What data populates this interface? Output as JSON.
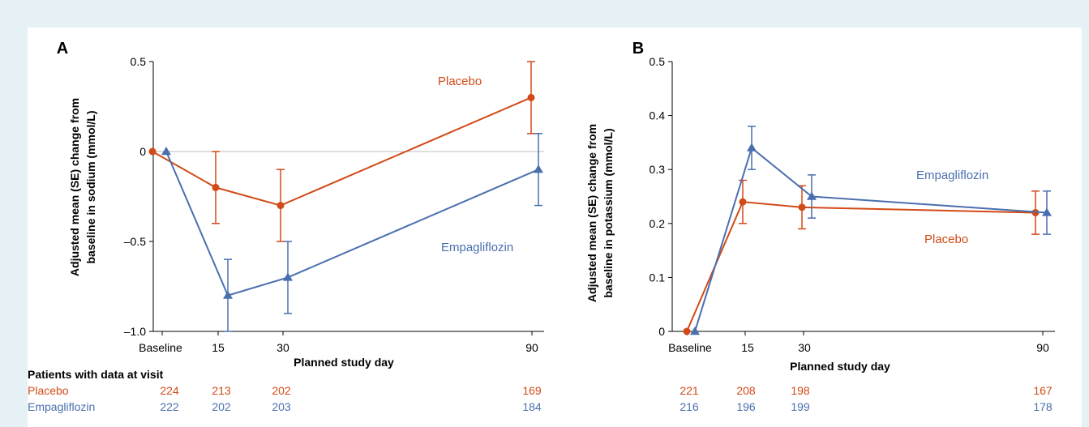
{
  "colors": {
    "placebo": "#d24a17",
    "empagliflozin": "#4a6fae",
    "axis": "#000000",
    "zero_line": "#bdbdbd"
  },
  "table_header": "Patients with data at visit",
  "chart_data": [
    {
      "panel_label": "A",
      "type": "line",
      "ylabel_lines": [
        "Adjusted mean (SE) change from",
        "baseline in sodium (mmol/L)"
      ],
      "xlabel": "Planned study day",
      "ylim": [
        -1.0,
        0.5
      ],
      "yticks": [
        0.5,
        0,
        -0.5,
        -1.0
      ],
      "ytick_labels": [
        "0.5",
        "0",
        "–0.5",
        "–1.0"
      ],
      "xticks": [
        {
          "label": "Baseline",
          "day": 0
        },
        {
          "label": "15",
          "day": 15
        },
        {
          "label": "30",
          "day": 30
        },
        {
          "label": "90",
          "day": 90
        }
      ],
      "zero_line": true,
      "series": [
        {
          "name": "Placebo",
          "color_key": "placebo",
          "marker": "circle",
          "x": [
            0,
            15,
            30,
            90
          ],
          "y": [
            0,
            -0.2,
            -0.3,
            0.3
          ],
          "se": [
            0,
            0.2,
            0.2,
            0.2
          ]
        },
        {
          "name": "Empagliflozin",
          "color_key": "empagliflozin",
          "marker": "triangle",
          "x": [
            0,
            15,
            30,
            90
          ],
          "y": [
            0,
            -0.8,
            -0.7,
            -0.1
          ],
          "se": [
            0,
            0.2,
            0.2,
            0.2
          ]
        }
      ],
      "counts": [
        {
          "name": "Placebo",
          "color_key": "placebo",
          "values": [
            "224",
            "213",
            "202",
            "169"
          ]
        },
        {
          "name": "Empagliflozin",
          "color_key": "empagliflozin",
          "values": [
            "222",
            "202",
            "203",
            "184"
          ]
        }
      ]
    },
    {
      "panel_label": "B",
      "type": "line",
      "ylabel_lines": [
        "Adjusted mean (SE) change from",
        "baseline in potassium (mmol/L)"
      ],
      "xlabel": "Planned study day",
      "ylim": [
        0,
        0.5
      ],
      "yticks": [
        0.5,
        0.4,
        0.3,
        0.2,
        0.1,
        0
      ],
      "ytick_labels": [
        "0.5",
        "0.4",
        "0.3",
        "0.2",
        "0.1",
        "0"
      ],
      "xticks": [
        {
          "label": "Baseline",
          "day": 0
        },
        {
          "label": "15",
          "day": 15
        },
        {
          "label": "30",
          "day": 30
        },
        {
          "label": "90",
          "day": 90
        }
      ],
      "zero_line": false,
      "series": [
        {
          "name": "Placebo",
          "color_key": "placebo",
          "marker": "circle",
          "x": [
            0,
            15,
            30,
            90
          ],
          "y": [
            0,
            0.24,
            0.23,
            0.22
          ],
          "se": [
            0,
            0.04,
            0.04,
            0.04
          ]
        },
        {
          "name": "Empagliflozin",
          "color_key": "empagliflozin",
          "marker": "triangle",
          "x": [
            0,
            15,
            30,
            90
          ],
          "y": [
            0,
            0.34,
            0.25,
            0.22
          ],
          "se": [
            0,
            0.04,
            0.04,
            0.04
          ]
        }
      ],
      "counts": [
        {
          "name": "Placebo",
          "color_key": "placebo",
          "values": [
            "221",
            "208",
            "198",
            "167"
          ]
        },
        {
          "name": "Empagliflozin",
          "color_key": "empagliflozin",
          "values": [
            "216",
            "196",
            "199",
            "178"
          ]
        }
      ]
    }
  ]
}
